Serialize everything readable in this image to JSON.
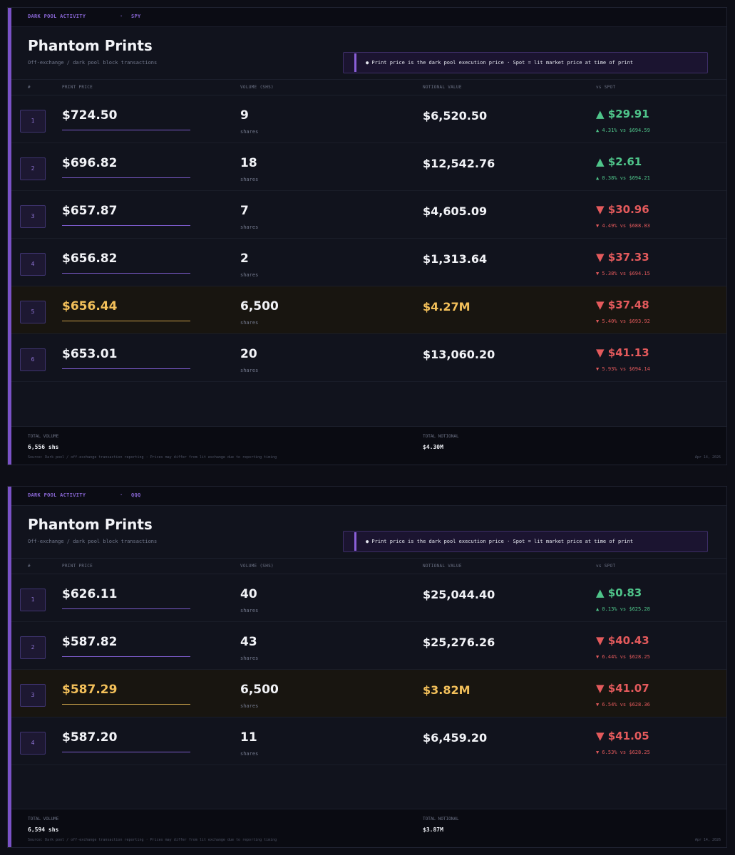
{
  "colors": {
    "accent": "#7a52c6",
    "up": "#4fc58a",
    "down": "#e45a5c",
    "highlight": "#f3c05a",
    "background": "#11131d"
  },
  "icons": [
    "dot-icon",
    "triangle-up-icon",
    "triangle-down-icon"
  ],
  "panels": [
    {
      "header_label": "DARK POOL ACTIVITY",
      "separator": "·",
      "ticker": "SPY",
      "title": "Phantom Prints",
      "subtitle": "Off-exchange / dark pool block transactions",
      "note": "● Print price is the dark pool execution price  ·  Spot = lit market price at time of print",
      "columns": {
        "num": "#",
        "price": "PRINT PRICE",
        "volume": "VOLUME (SHS)",
        "notional": "NOTIONAL VALUE",
        "spot": "vs SPOT"
      },
      "rows": [
        {
          "num": "1",
          "price": "$724.50",
          "volume": "9",
          "unit": "shares",
          "notional": "$6,520.50",
          "diff": "▲ $29.91",
          "diff_sub": "▲ 4.31%  vs $694.59",
          "direction": "up",
          "highlight": false
        },
        {
          "num": "2",
          "price": "$696.82",
          "volume": "18",
          "unit": "shares",
          "notional": "$12,542.76",
          "diff": "▲ $2.61",
          "diff_sub": "▲ 0.38%  vs $694.21",
          "direction": "up",
          "highlight": false
        },
        {
          "num": "3",
          "price": "$657.87",
          "volume": "7",
          "unit": "shares",
          "notional": "$4,605.09",
          "diff": "▼ $30.96",
          "diff_sub": "▼ 4.49%  vs $688.83",
          "direction": "down",
          "highlight": false
        },
        {
          "num": "4",
          "price": "$656.82",
          "volume": "2",
          "unit": "shares",
          "notional": "$1,313.64",
          "diff": "▼ $37.33",
          "diff_sub": "▼ 5.38%  vs $694.15",
          "direction": "down",
          "highlight": false
        },
        {
          "num": "5",
          "price": "$656.44",
          "volume": "6,500",
          "unit": "shares",
          "notional": "$4.27M",
          "diff": "▼ $37.48",
          "diff_sub": "▼ 5.40%  vs $693.92",
          "direction": "down",
          "highlight": true
        },
        {
          "num": "6",
          "price": "$653.01",
          "volume": "20",
          "unit": "shares",
          "notional": "$13,060.20",
          "diff": "▼ $41.13",
          "diff_sub": "▼ 5.93%  vs $694.14",
          "direction": "down",
          "highlight": false
        }
      ],
      "footer": {
        "total_volume_label": "TOTAL VOLUME",
        "total_volume": "6,556 shs",
        "total_notional_label": "TOTAL NOTIONAL",
        "total_notional": "$4.30M",
        "source": "Source: Dark pool / off-exchange transaction reporting  ·  Prices may differ from lit exchange due to reporting timing",
        "date": "Apr 14, 2026"
      }
    },
    {
      "header_label": "DARK POOL ACTIVITY",
      "separator": "·",
      "ticker": "QQQ",
      "title": "Phantom Prints",
      "subtitle": "Off-exchange / dark pool block transactions",
      "note": "● Print price is the dark pool execution price  ·  Spot = lit market price at time of print",
      "columns": {
        "num": "#",
        "price": "PRINT PRICE",
        "volume": "VOLUME (SHS)",
        "notional": "NOTIONAL VALUE",
        "spot": "vs SPOT"
      },
      "rows": [
        {
          "num": "1",
          "price": "$626.11",
          "volume": "40",
          "unit": "shares",
          "notional": "$25,044.40",
          "diff": "▲ $0.83",
          "diff_sub": "▲ 0.13%  vs $625.28",
          "direction": "up",
          "highlight": false
        },
        {
          "num": "2",
          "price": "$587.82",
          "volume": "43",
          "unit": "shares",
          "notional": "$25,276.26",
          "diff": "▼ $40.43",
          "diff_sub": "▼ 6.44%  vs $628.25",
          "direction": "down",
          "highlight": false
        },
        {
          "num": "3",
          "price": "$587.29",
          "volume": "6,500",
          "unit": "shares",
          "notional": "$3.82M",
          "diff": "▼ $41.07",
          "diff_sub": "▼ 6.54%  vs $628.36",
          "direction": "down",
          "highlight": true
        },
        {
          "num": "4",
          "price": "$587.20",
          "volume": "11",
          "unit": "shares",
          "notional": "$6,459.20",
          "diff": "▼ $41.05",
          "diff_sub": "▼ 6.53%  vs $628.25",
          "direction": "down",
          "highlight": false
        }
      ],
      "footer": {
        "total_volume_label": "TOTAL VOLUME",
        "total_volume": "6,594 shs",
        "total_notional_label": "TOTAL NOTIONAL",
        "total_notional": "$3.87M",
        "source": "Source: Dark pool / off-exchange transaction reporting  ·  Prices may differ from lit exchange due to reporting timing",
        "date": "Apr 14, 2026"
      }
    }
  ]
}
